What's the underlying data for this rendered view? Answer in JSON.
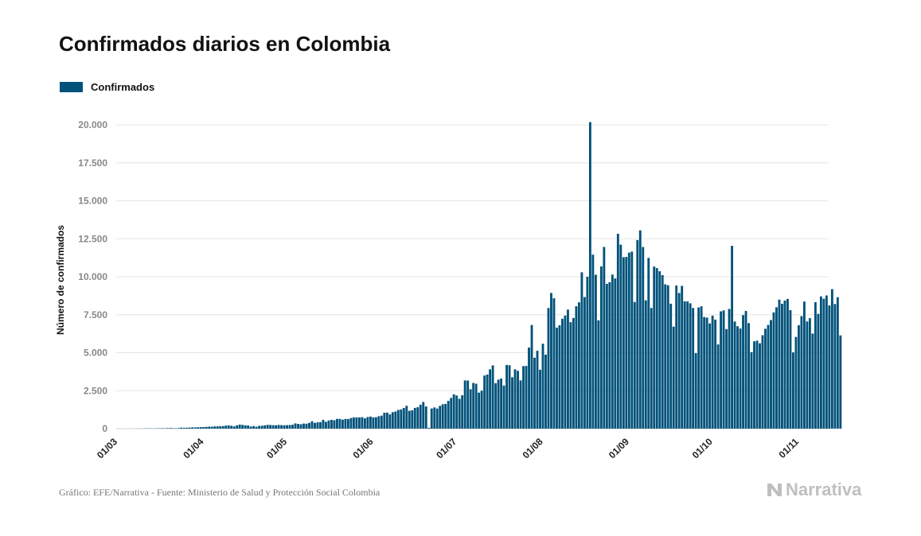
{
  "title": "Confirmados diarios en Colombia",
  "legend": {
    "label": "Confirmados",
    "color": "#00527a"
  },
  "ylabel": "Número de confirmados",
  "footer": "Gráfico: EFE/Narrativa - Fuente: Ministerio de Salud y Protección Social Colombia",
  "brand": {
    "name": "Narrativa",
    "icon": "narrativa-logo-icon"
  },
  "chart_data": {
    "type": "bar",
    "series": [
      {
        "name": "Confirmados",
        "color": "#00527a"
      }
    ],
    "x_start_label": "01/03",
    "x_ticks": [
      "01/03",
      "01/04",
      "01/05",
      "01/06",
      "01/07",
      "01/08",
      "01/09",
      "01/10",
      "01/11"
    ],
    "y_ticks": [
      "0",
      "2.500",
      "5.000",
      "7.500",
      "10.000",
      "12.500",
      "15.000",
      "17.500",
      "20.000"
    ],
    "ylim": [
      0,
      20000
    ],
    "grid": true,
    "legend_position": "top-left",
    "values": [
      0,
      0,
      0,
      0,
      0,
      1,
      0,
      3,
      6,
      9,
      13,
      14,
      10,
      10,
      13,
      19,
      24,
      22,
      31,
      41,
      31,
      26,
      35,
      68,
      52,
      63,
      71,
      83,
      83,
      93,
      98,
      103,
      119,
      132,
      128,
      149,
      152,
      160,
      170,
      198,
      213,
      185,
      148,
      221,
      266,
      244,
      219,
      208,
      136,
      168,
      125,
      178,
      190,
      213,
      252,
      241,
      228,
      222,
      246,
      229,
      224,
      232,
      239,
      260,
      346,
      312,
      291,
      333,
      323,
      378,
      484,
      381,
      416,
      431,
      582,
      447,
      536,
      579,
      553,
      642,
      640,
      593,
      636,
      632,
      699,
      740,
      743,
      739,
      756,
      679,
      764,
      796,
      742,
      753,
      818,
      855,
      1046,
      1056,
      938,
      1085,
      1130,
      1231,
      1267,
      1364,
      1504,
      1174,
      1209,
      1366,
      1410,
      1575,
      1756,
      1461,
      50,
      1325,
      1396,
      1324,
      1498,
      1604,
      1629,
      1826,
      2021,
      2254,
      2180,
      1965,
      2197,
      3171,
      3168,
      2595,
      3007,
      2956,
      2371,
      2497,
      3496,
      3561,
      3904,
      4163,
      2991,
      3226,
      3294,
      2835,
      4191,
      4172,
      3384,
      3905,
      3802,
      3176,
      4118,
      4128,
      5336,
      6823,
      4671,
      5125,
      3880,
      5592,
      4871,
      7940,
      8933,
      8583,
      6648,
      6802,
      7234,
      7444,
      7838,
      7012,
      7287,
      8058,
      8315,
      10293,
      8662,
      10000,
      20180,
      11454,
      10130,
      7129,
      10681,
      11963,
      9533,
      9642,
      10142,
      9888,
      12830,
      12113,
      11286,
      11305,
      11586,
      11655,
      8339,
      12415,
      13056,
      11959,
      8447,
      11240,
      7941,
      10673,
      10570,
      10358,
      10108,
      9500,
      9444,
      8225,
      6716,
      9423,
      8932,
      9399,
      8384,
      8373,
      8251,
      7940,
      4967,
      7979,
      8055,
      7346,
      7309,
      6926,
      7442,
      7178,
      5544,
      7721,
      7786,
      6554,
      7880,
      12034,
      7053,
      6743,
      6591,
      7476,
      7745,
      6948,
      5038,
      5751,
      5791,
      5622,
      6149,
      6574,
      6828,
      7147,
      7656,
      7991,
      8495,
      8222,
      8435,
      8542,
      7800,
      5019,
      6037,
      6813,
      7405,
      8365,
      7058,
      7272,
      6258,
      8325,
      7555,
      8709,
      8553,
      8768,
      8109,
      9181,
      8206,
      8650,
      6137
    ]
  }
}
